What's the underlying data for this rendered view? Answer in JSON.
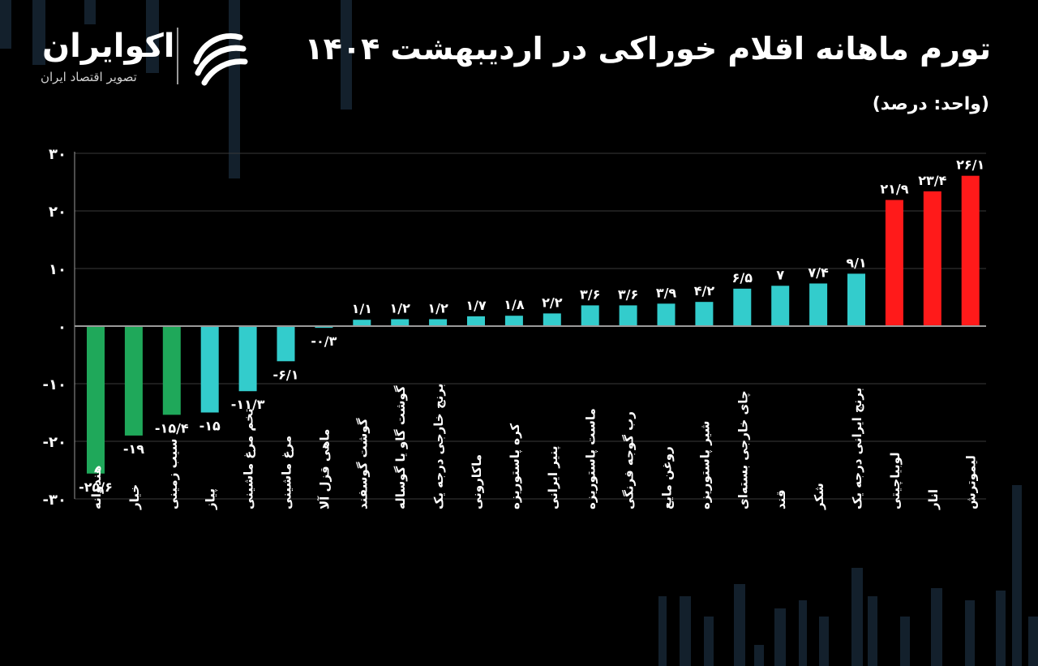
{
  "header": {
    "title": "تورم ماهانه اقلام خوراکی در اردیبهشت ۱۴۰۴",
    "unit": "(واحد: درصد)"
  },
  "brand": {
    "name": "اکوایران",
    "tagline": "تصویر اقتصاد ایران",
    "logo_icon": "ecoiran-logo-icon"
  },
  "chart_data": {
    "type": "bar",
    "title": "تورم ماهانه اقلام خوراکی در اردیبهشت ۱۴۰۴",
    "ylabel": "",
    "xlabel": "",
    "ylim": [
      -30,
      30
    ],
    "yticks": [
      30,
      20,
      10,
      0,
      -10,
      -20,
      -30
    ],
    "ytick_labels": [
      "۳۰",
      "۲۰",
      "۱۰",
      "۰",
      "-۱۰",
      "-۲۰",
      "-۳۰"
    ],
    "grid": true,
    "categories": [
      "هندوانه",
      "خیار",
      "سیب زمینی",
      "پیاز",
      "تخم مرغ ماشینی",
      "مرغ ماشینی",
      "ماهی قزل آلا",
      "گوشت گوسفند",
      "گوشت گاو یا گوساله",
      "برنج خارجی درجه یک",
      "ماکارونی",
      "کره پاستوریزه",
      "پنیر ایرانی",
      "ماست پاستوریزه",
      "رب گوجه فرنگی",
      "روغن مایع",
      "شیر پاستوریزه",
      "چای خارجی بسته‌ای",
      "قند",
      "شکر",
      "برنج ایرانی درجه یک",
      "لوبیاچیتی",
      "انار",
      "لیموترش"
    ],
    "values": [
      -25.6,
      -19,
      -15.4,
      -15,
      -11.3,
      -6.1,
      -0.3,
      1.1,
      1.2,
      1.2,
      1.7,
      1.8,
      2.2,
      3.6,
      3.6,
      3.9,
      4.2,
      6.5,
      7,
      7.4,
      9.1,
      21.9,
      23.4,
      26.1
    ],
    "value_labels": [
      "-۲۵/۶",
      "-۱۹",
      "-۱۵/۴",
      "-۱۵",
      "-۱۱/۳",
      "-۶/۱",
      "-۰/۳",
      "۱/۱",
      "۱/۲",
      "۱/۲",
      "۱/۷",
      "۱/۸",
      "۲/۲",
      "۳/۶",
      "۳/۶",
      "۳/۹",
      "۴/۲",
      "۶/۵",
      "۷",
      "۷/۴",
      "۹/۱",
      "۲۱/۹",
      "۲۳/۴",
      "۲۶/۱"
    ],
    "bar_colors": [
      "#1fa85a",
      "#1fa85a",
      "#1fa85a",
      "#33cccc",
      "#33cccc",
      "#33cccc",
      "#33cccc",
      "#33cccc",
      "#33cccc",
      "#33cccc",
      "#33cccc",
      "#33cccc",
      "#33cccc",
      "#33cccc",
      "#33cccc",
      "#33cccc",
      "#33cccc",
      "#33cccc",
      "#33cccc",
      "#33cccc",
      "#33cccc",
      "#ff1a1a",
      "#ff1a1a",
      "#ff1a1a"
    ]
  },
  "colors": {
    "background": "#000000",
    "grid": "#3a3a3a",
    "axis": "#9a9a9a",
    "text": "#ffffff",
    "decor": "#13202c"
  }
}
